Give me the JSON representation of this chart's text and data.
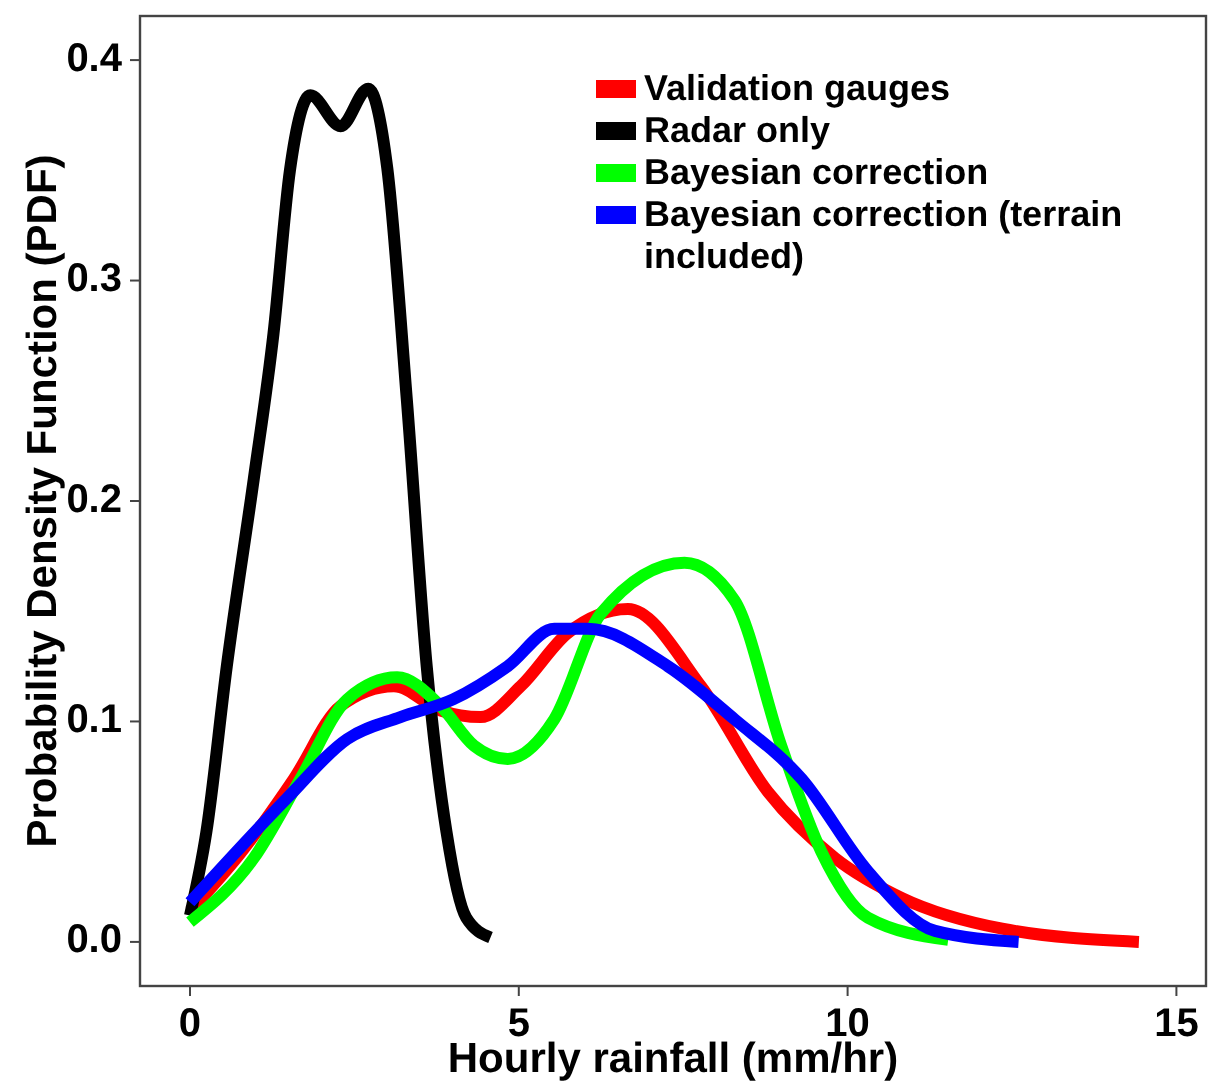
{
  "chart_data": {
    "type": "line",
    "xlabel": "Hourly rainfall (mm/hr)",
    "ylabel": "Probability Density Function (PDF)",
    "xlim": [
      -0.76,
      15.45
    ],
    "ylim": [
      -0.02,
      0.42
    ],
    "xticks": [
      0,
      5,
      10,
      15
    ],
    "yticks": [
      {
        "value": 0,
        "label": "0.0"
      },
      0.1,
      0.2,
      0.3,
      0.4
    ],
    "grid": false,
    "legend": "top right",
    "marker": "none",
    "line_style": "solid",
    "series": [
      {
        "name": "Validation gauges",
        "color": "#ff0000",
        "x": [
          0,
          0.76,
          1.58,
          2.29,
          3.1,
          3.81,
          4.42,
          5.03,
          5.74,
          6.66,
          7.77,
          8.79,
          9.81,
          10.82,
          12.35,
          14.43
        ],
        "values": [
          0.014,
          0.04,
          0.074,
          0.107,
          0.116,
          0.105,
          0.102,
          0.116,
          0.14,
          0.151,
          0.116,
          0.068,
          0.038,
          0.02,
          0.006,
          0
        ]
      },
      {
        "name": "Radar only",
        "color": "#000000",
        "x": [
          0,
          0.25,
          0.56,
          0.97,
          1.27,
          1.52,
          1.83,
          2.29,
          2.71,
          3.0,
          3.3,
          3.6,
          3.9,
          4.2,
          4.57
        ],
        "values": [
          0.012,
          0.05,
          0.125,
          0.21,
          0.276,
          0.35,
          0.384,
          0.37,
          0.387,
          0.351,
          0.245,
          0.125,
          0.05,
          0.011,
          0.002
        ]
      },
      {
        "name": "Bayesian correction",
        "color": "#00ff00",
        "x": [
          0,
          0.97,
          1.68,
          2.39,
          3.15,
          3.81,
          4.32,
          4.83,
          5.54,
          6.25,
          7.52,
          8.28,
          8.99,
          9.6,
          10.31,
          11.53
        ],
        "values": [
          0.009,
          0.038,
          0.074,
          0.11,
          0.12,
          0.107,
          0.089,
          0.083,
          0.101,
          0.149,
          0.172,
          0.155,
          0.089,
          0.041,
          0.011,
          0.001
        ]
      },
      {
        "name": "Bayesian correction (terrain included)",
        "color": "#0000ff",
        "x": [
          0,
          1.47,
          2.39,
          3.2,
          4.0,
          4.83,
          5.54,
          6.05,
          7.27,
          8.28,
          9.3,
          10.31,
          11.33,
          12.6
        ],
        "values": [
          0.018,
          0.065,
          0.092,
          0.102,
          0.11,
          0.125,
          0.142,
          0.142,
          0.125,
          0.101,
          0.074,
          0.032,
          0.005,
          0
        ]
      }
    ]
  }
}
